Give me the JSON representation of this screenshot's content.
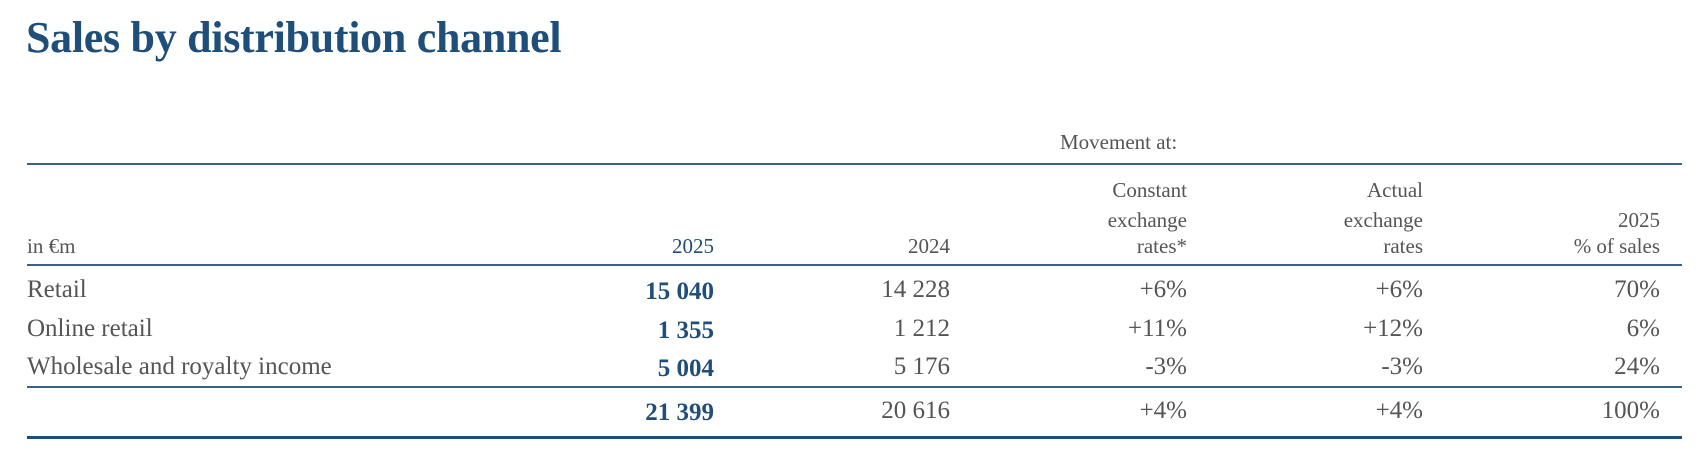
{
  "title": "Sales by distribution channel",
  "group_header": "Movement at:",
  "columns": {
    "label": "in €m",
    "y2025": "2025",
    "y2024": "2024",
    "constant_l1": "Constant",
    "constant_l2": "exchange",
    "constant_l3": "rates*",
    "actual_l1": "Actual",
    "actual_l2": "exchange",
    "actual_l3": "rates",
    "share_l1": "2025",
    "share_l2": "% of sales"
  },
  "rows": [
    {
      "label": "Retail",
      "y2025": "15 040",
      "y2024": "14 228",
      "constant": "+6%",
      "actual": "+6%",
      "share": "70%"
    },
    {
      "label": "Online retail",
      "y2025": "1 355",
      "y2024": "1 212",
      "constant": "+11%",
      "actual": "+12%",
      "share": "6%"
    },
    {
      "label": "Wholesale and royalty income",
      "y2025": "5 004",
      "y2024": "5 176",
      "constant": "-3%",
      "actual": "-3%",
      "share": "24%"
    }
  ],
  "total": {
    "label": "",
    "y2025": "21 399",
    "y2024": "20 616",
    "constant": "+4%",
    "actual": "+4%",
    "share": "100%"
  },
  "colors": {
    "accent": "#1f4e79",
    "text": "#555555",
    "rule": "#3b5f85"
  }
}
